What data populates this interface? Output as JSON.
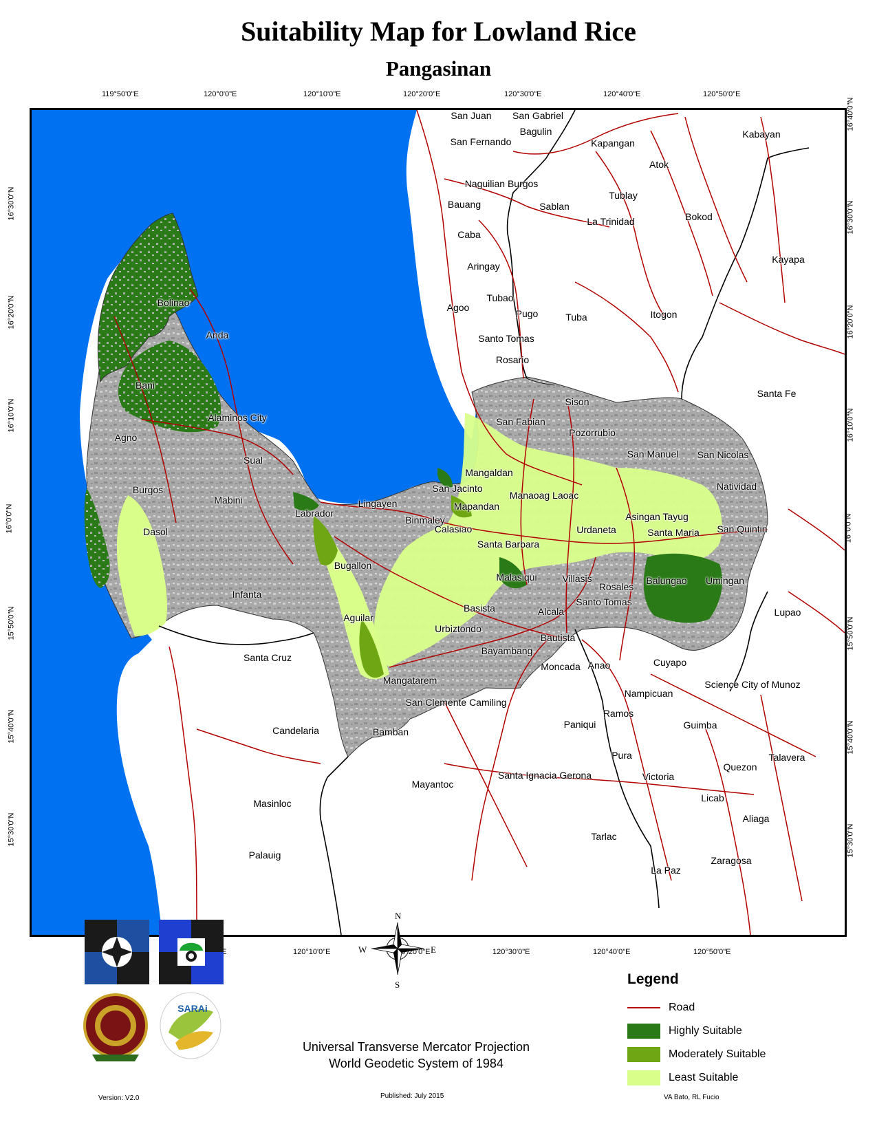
{
  "title": "Suitability Map for Lowland Rice",
  "subtitle": "Pangasinan",
  "graticule": {
    "longitudes": [
      "119°50'0\"E",
      "120°0'0\"E",
      "120°10'0\"E",
      "120°20'0\"E",
      "120°30'0\"E",
      "120°40'0\"E",
      "120°50'0\"E"
    ],
    "latitudes": [
      "16°40'0\"N",
      "16°30'0\"N",
      "16°20'0\"N",
      "16°10'0\"N",
      "16°0'0\"N",
      "15°50'0\"N",
      "15°40'0\"N",
      "15°30'0\"N"
    ]
  },
  "colors": {
    "sea": "#0071f0",
    "not_suitable": "#b8b8b8",
    "highly_suitable": "#2a7a17",
    "moderately_suitable": "#6fa614",
    "least_suitable": "#d9ff8a",
    "road": "#b20000",
    "boundary": "#000000"
  },
  "places": [
    "San Juan",
    "San Gabriel",
    "Bagulin",
    "San Fernando",
    "Kapangan",
    "Kabayan",
    "Atok",
    "Naguilian Burgos",
    "Tublay",
    "Bauang",
    "Sablan",
    "La Trinidad",
    "Bokod",
    "Caba",
    "Kayapa",
    "Aringay",
    "Tubao",
    "Agoo",
    "Pugo",
    "Tuba",
    "Itogon",
    "Santo Tomas",
    "Rosario",
    "Santa Fe",
    "Bolinao",
    "Anda",
    "Bani",
    "Sison",
    "Alaminos City",
    "San Fabian",
    "Agno",
    "Pozorrubio",
    "San Manuel",
    "San Nicolas",
    "Sual",
    "Mangaldan",
    "Natividad",
    "Burgos",
    "Mabini",
    "Lingayen",
    "San Jacinto",
    "Manaoag Laoac",
    "Labrador",
    "Binmaley",
    "Mapandan",
    "Asingan Tayug",
    "Dasol",
    "Calasiao",
    "Urdaneta",
    "Santa Maria",
    "San Quintin",
    "Santa Barbara",
    "Bugallon",
    "Malasiqui",
    "Villasis",
    "Balungao",
    "Umingan",
    "Rosales",
    "Infanta",
    "Santo Tomas",
    "Basista",
    "Alcala",
    "Lupao",
    "Aguilar",
    "Urbiztondo",
    "Bautista",
    "Bayambang",
    "Santa Cruz",
    "Cuyapo",
    "Moncada",
    "Anao",
    "Mangatarem",
    "Science City of Munoz",
    "Nampicuan",
    "San Clemente Camiling",
    "Ramos",
    "Candelaria",
    "Paniqui",
    "Guimba",
    "Bamban",
    "Talavera",
    "Pura",
    "Quezon",
    "Mayantoc",
    "Santa Ignacia Gerona",
    "Victoria",
    "Masinloc",
    "Licab",
    "Aliaga",
    "Tarlac",
    "Palauig",
    "Zaragosa",
    "La Paz"
  ],
  "projection": {
    "line1": "Universal Transverse Mercator Projection",
    "line2": "World Geodetic System of 1984"
  },
  "compass": {
    "n": "N",
    "s": "S",
    "e": "E",
    "w": "W"
  },
  "legend": {
    "title": "Legend",
    "items": [
      {
        "label": "Road",
        "kind": "line",
        "color": "#b20000"
      },
      {
        "label": "Highly Suitable",
        "kind": "fill",
        "color": "#2a7a17"
      },
      {
        "label": "Moderately Suitable",
        "kind": "fill",
        "color": "#6fa614"
      },
      {
        "label": "Least Suitable",
        "kind": "fill",
        "color": "#d9ff8a"
      }
    ]
  },
  "footer": {
    "version": "Version: V2.0",
    "published": "Published: July 2015",
    "authors": "VA Bato, RL Fucio"
  }
}
